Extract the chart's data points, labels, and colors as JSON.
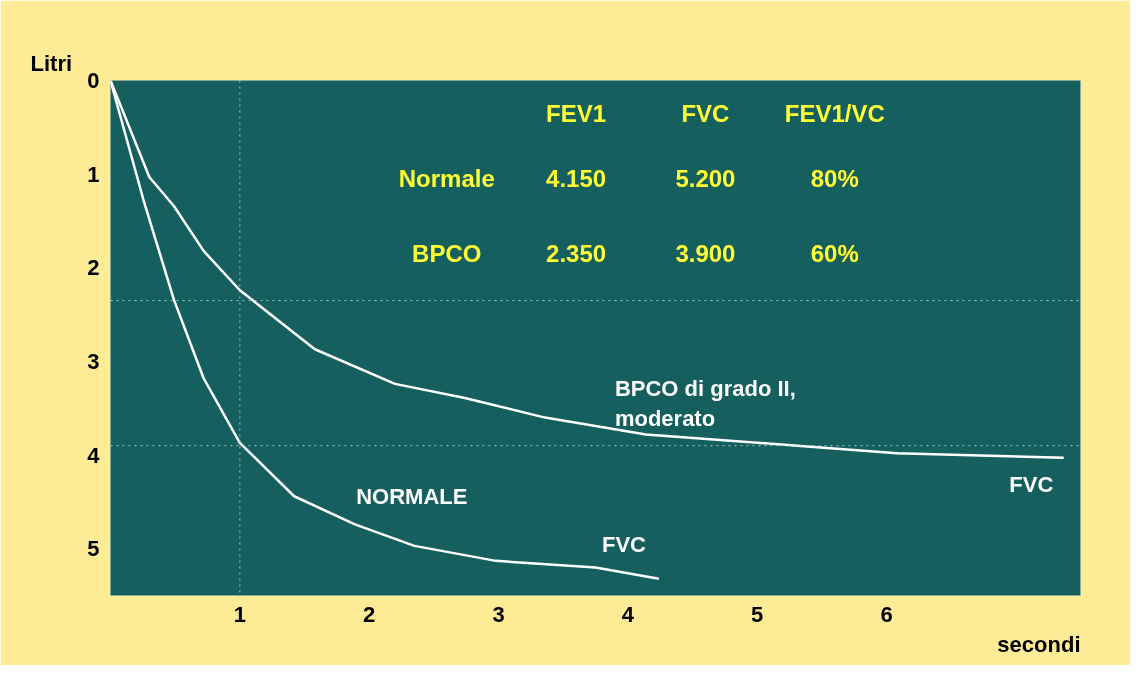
{
  "chart_data": {
    "type": "line",
    "ylabel": "Litri",
    "xlabel": "secondi",
    "xlim": [
      0,
      7.5
    ],
    "ylim": [
      5.5,
      0
    ],
    "xticks": [
      1,
      2,
      3,
      4,
      5,
      6
    ],
    "yticks": [
      0,
      1,
      2,
      3,
      4,
      5
    ],
    "grid": false,
    "marker": "none",
    "line_style": "solid",
    "series": [
      {
        "x": [
          0,
          0.26,
          0.49,
          0.72,
          1,
          1.42,
          1.89,
          2.35,
          2.98,
          3.75,
          4.24
        ],
        "values": [
          0,
          1.3,
          2.34,
          3.18,
          3.87,
          4.44,
          4.74,
          4.97,
          5.13,
          5.2,
          5.32
        ],
        "color": "#ffffff"
      },
      {
        "x": [
          0,
          0.3,
          0.49,
          0.72,
          1,
          1.58,
          2.2,
          2.74,
          3.36,
          4.14,
          5.31,
          6.08,
          7.37
        ],
        "values": [
          0,
          1.03,
          1.34,
          1.82,
          2.24,
          2.87,
          3.24,
          3.39,
          3.6,
          3.78,
          3.9,
          3.98,
          4.03
        ],
        "color": "#ffffff"
      }
    ],
    "ref_lines": [
      {
        "axis": "x",
        "value": 1,
        "color": "#9fc8c8",
        "line_style": "dotted"
      },
      {
        "axis": "y",
        "value": 2.35,
        "color": "#9fc8c8",
        "line_style": "dotted"
      },
      {
        "axis": "y",
        "value": 3.9,
        "color": "#9fc8c8",
        "line_style": "dotted"
      }
    ],
    "annotations": [
      "FEV1",
      "FVC",
      "FEV1/VC",
      "Normale",
      "4.150",
      "5.200",
      "80%",
      "BPCO",
      "2.350",
      "3.900",
      "60%",
      "BPCO di grado II,\nmoderato",
      "NORMALE",
      "FVC",
      "FVC"
    ]
  }
}
